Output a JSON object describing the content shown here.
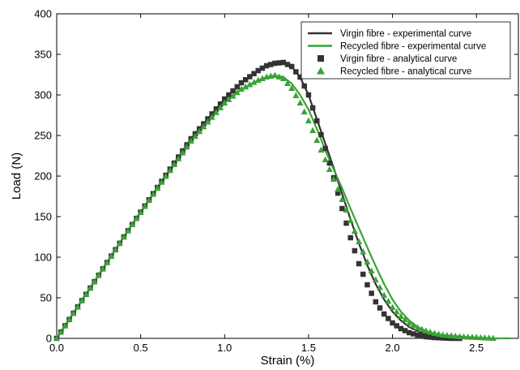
{
  "chart_data": {
    "type": "line",
    "xlabel": "Strain (%)",
    "ylabel": "Load (N)",
    "xlim": [
      0,
      2.75
    ],
    "ylim": [
      0,
      400
    ],
    "xticks": [
      "0.0",
      "0.5",
      "1.0",
      "1.5",
      "2.0",
      "2.5"
    ],
    "yticks": [
      "0",
      "50",
      "100",
      "150",
      "200",
      "250",
      "300",
      "350",
      "400"
    ],
    "legend_position": "top-right",
    "series": [
      {
        "name": "Virgin fibre - experimental curve",
        "style": "line",
        "color": "#333333",
        "x": [
          0,
          0.2,
          0.4,
          0.6,
          0.8,
          1.0,
          1.1,
          1.2,
          1.25,
          1.3,
          1.35,
          1.4,
          1.45,
          1.5,
          1.55,
          1.6,
          1.65,
          1.7,
          1.75,
          1.8,
          1.85,
          1.9,
          1.95,
          2.0,
          2.05,
          2.1,
          2.15,
          2.2,
          2.25,
          2.3,
          2.35,
          2.4,
          2.5,
          2.6
        ],
        "y": [
          0,
          62,
          125,
          186,
          246,
          295,
          315,
          330,
          336,
          339,
          340,
          335,
          322,
          300,
          270,
          240,
          210,
          178,
          147,
          117,
          90,
          67,
          48,
          33,
          22,
          14,
          9,
          5,
          3,
          2,
          1,
          0.5,
          0,
          0
        ]
      },
      {
        "name": "Recycled fibre - experimental curve",
        "style": "line",
        "color": "#3aa335",
        "x": [
          0,
          0.2,
          0.4,
          0.6,
          0.8,
          1.0,
          1.1,
          1.2,
          1.25,
          1.3,
          1.35,
          1.4,
          1.45,
          1.5,
          1.55,
          1.6,
          1.65,
          1.7,
          1.75,
          1.8,
          1.85,
          1.9,
          1.95,
          2.0,
          2.05,
          2.1,
          2.15,
          2.2,
          2.25,
          2.3,
          2.35,
          2.4,
          2.5,
          2.6,
          2.7
        ],
        "y": [
          0,
          62,
          125,
          185,
          243,
          290,
          307,
          318,
          322,
          324,
          322,
          314,
          300,
          282,
          258,
          232,
          208,
          185,
          160,
          136,
          112,
          89,
          67,
          48,
          33,
          22,
          14,
          9,
          6,
          4,
          3,
          2,
          1,
          0,
          0
        ]
      },
      {
        "name": "Virgin fibre - analytical curve",
        "style": "marker-square",
        "color": "#333333",
        "x": [
          0,
          0.2,
          0.4,
          0.6,
          0.8,
          1.0,
          1.1,
          1.2,
          1.25,
          1.3,
          1.35,
          1.4,
          1.45,
          1.5,
          1.55,
          1.6,
          1.65,
          1.7,
          1.75,
          1.8,
          1.85,
          1.9,
          1.95,
          2.0,
          2.05,
          2.1,
          2.15,
          2.2,
          2.25,
          2.3,
          2.35,
          2.4
        ],
        "y": [
          0,
          62,
          125,
          186,
          246,
          295,
          315,
          330,
          336,
          339,
          340,
          335,
          322,
          300,
          268,
          234,
          198,
          160,
          124,
          92,
          66,
          45,
          30,
          19,
          12,
          7,
          4,
          2,
          1,
          0.5,
          0,
          0
        ]
      },
      {
        "name": "Recycled fibre - analytical curve",
        "style": "marker-triangle",
        "color": "#3aa335",
        "x": [
          0,
          0.2,
          0.4,
          0.6,
          0.8,
          1.0,
          1.1,
          1.2,
          1.25,
          1.3,
          1.35,
          1.4,
          1.45,
          1.5,
          1.55,
          1.6,
          1.65,
          1.7,
          1.75,
          1.8,
          1.85,
          1.9,
          1.95,
          2.0,
          2.05,
          2.1,
          2.15,
          2.2,
          2.25,
          2.3,
          2.35,
          2.4,
          2.5,
          2.6
        ],
        "y": [
          0,
          62,
          125,
          185,
          243,
          290,
          307,
          318,
          322,
          324,
          320,
          308,
          290,
          268,
          244,
          220,
          196,
          171,
          145,
          119,
          94,
          72,
          53,
          38,
          27,
          19,
          13,
          9,
          6,
          4,
          3,
          2,
          1,
          0
        ]
      }
    ]
  }
}
